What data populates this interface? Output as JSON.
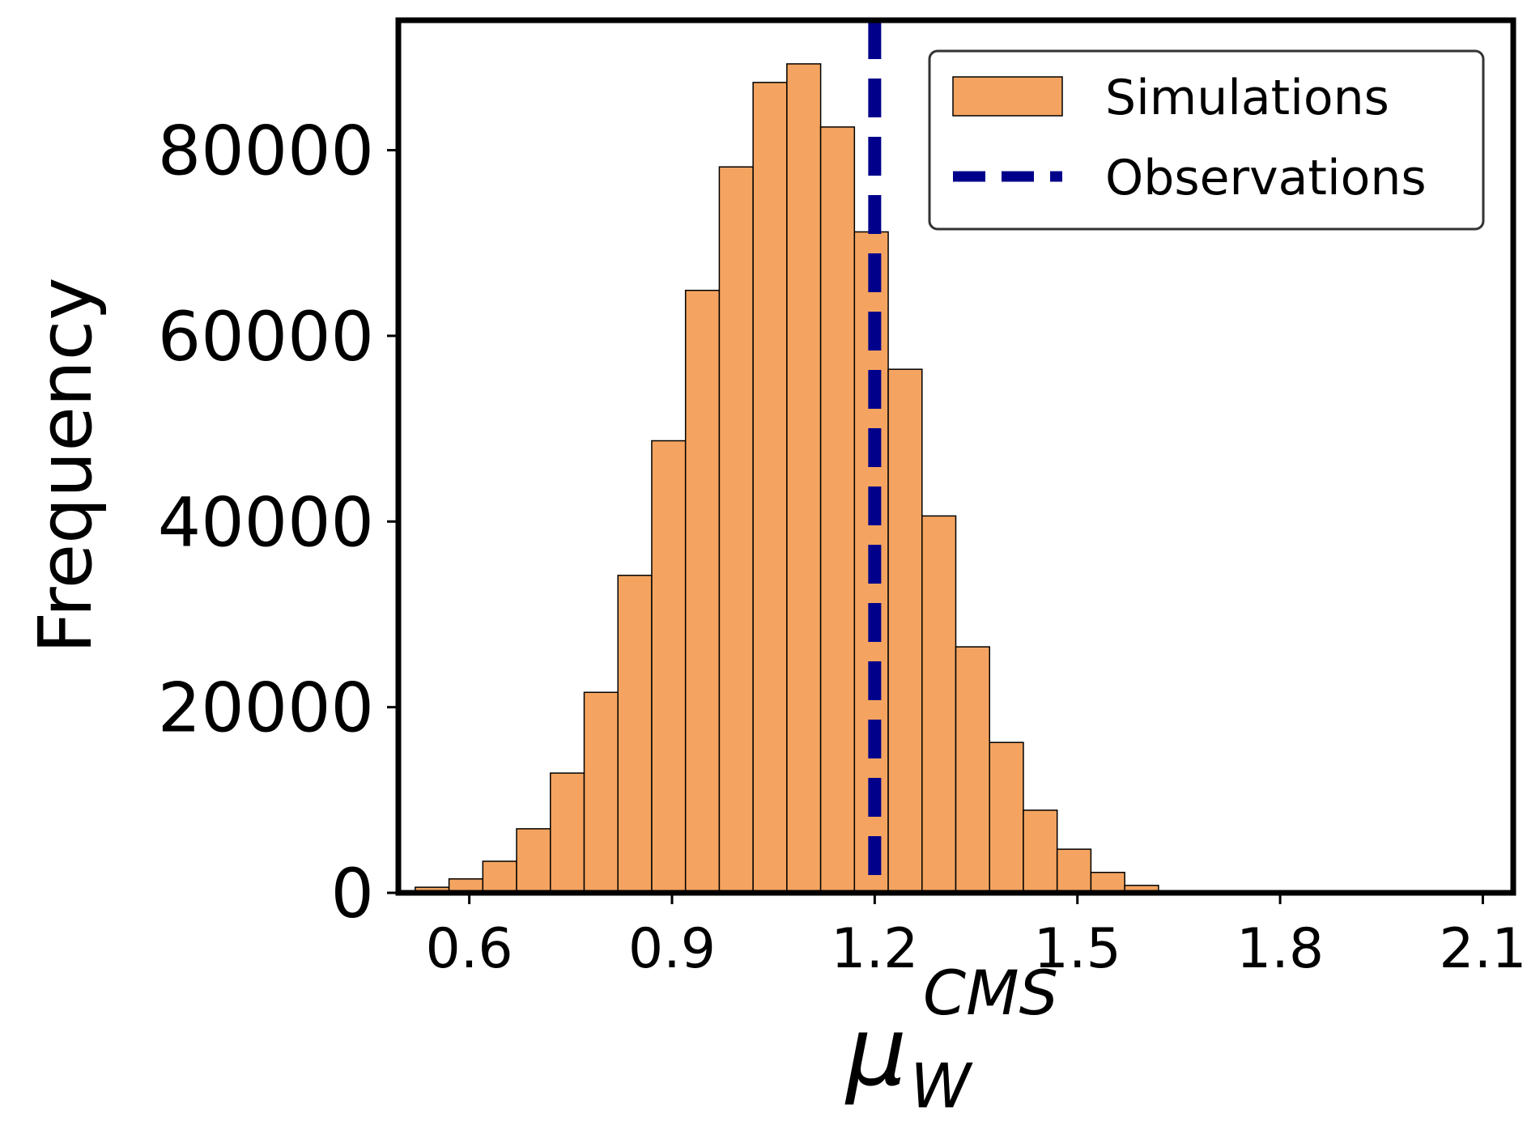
{
  "chart_data": {
    "type": "bar",
    "title": "",
    "xlabel": {
      "base": "μ",
      "subscript": "W",
      "superscript": "CMS"
    },
    "ylabel": "Frequency",
    "xlim": [
      0.495,
      2.145
    ],
    "ylim": [
      0,
      94000
    ],
    "bin_width": 0.05,
    "xticks": [
      0.6,
      0.9,
      1.2,
      1.5,
      1.8,
      2.1
    ],
    "xtick_labels": [
      "0.6",
      "0.9",
      "1.2",
      "1.5",
      "1.8",
      "2.1"
    ],
    "yticks": [
      0,
      20000,
      40000,
      60000,
      80000
    ],
    "ytick_labels": [
      "0",
      "20000",
      "40000",
      "60000",
      "80000"
    ],
    "grid": false,
    "legend_position": "top-right",
    "series": [
      {
        "name": "Simulations",
        "kind": "histogram",
        "color": "#f4a460",
        "bins": [
          {
            "x0": 0.52,
            "x1": 0.57,
            "value": 600
          },
          {
            "x0": 0.57,
            "x1": 0.62,
            "value": 1500
          },
          {
            "x0": 0.62,
            "x1": 0.67,
            "value": 3400
          },
          {
            "x0": 0.67,
            "x1": 0.72,
            "value": 6900
          },
          {
            "x0": 0.72,
            "x1": 0.77,
            "value": 12900
          },
          {
            "x0": 0.77,
            "x1": 0.82,
            "value": 21600
          },
          {
            "x0": 0.82,
            "x1": 0.87,
            "value": 34200
          },
          {
            "x0": 0.87,
            "x1": 0.92,
            "value": 48700
          },
          {
            "x0": 0.92,
            "x1": 0.97,
            "value": 64900
          },
          {
            "x0": 0.97,
            "x1": 1.02,
            "value": 78200
          },
          {
            "x0": 1.02,
            "x1": 1.07,
            "value": 87300
          },
          {
            "x0": 1.07,
            "x1": 1.12,
            "value": 89300
          },
          {
            "x0": 1.12,
            "x1": 1.17,
            "value": 82500
          },
          {
            "x0": 1.17,
            "x1": 1.22,
            "value": 71200
          },
          {
            "x0": 1.22,
            "x1": 1.27,
            "value": 56400
          },
          {
            "x0": 1.27,
            "x1": 1.32,
            "value": 40600
          },
          {
            "x0": 1.32,
            "x1": 1.37,
            "value": 26500
          },
          {
            "x0": 1.37,
            "x1": 1.42,
            "value": 16200
          },
          {
            "x0": 1.42,
            "x1": 1.47,
            "value": 8900
          },
          {
            "x0": 1.47,
            "x1": 1.52,
            "value": 4700
          },
          {
            "x0": 1.52,
            "x1": 1.57,
            "value": 2200
          },
          {
            "x0": 1.57,
            "x1": 1.62,
            "value": 800
          }
        ]
      },
      {
        "name": "Observations",
        "kind": "vline",
        "color": "#00008b",
        "style": "dashed",
        "x": 1.2
      }
    ]
  }
}
